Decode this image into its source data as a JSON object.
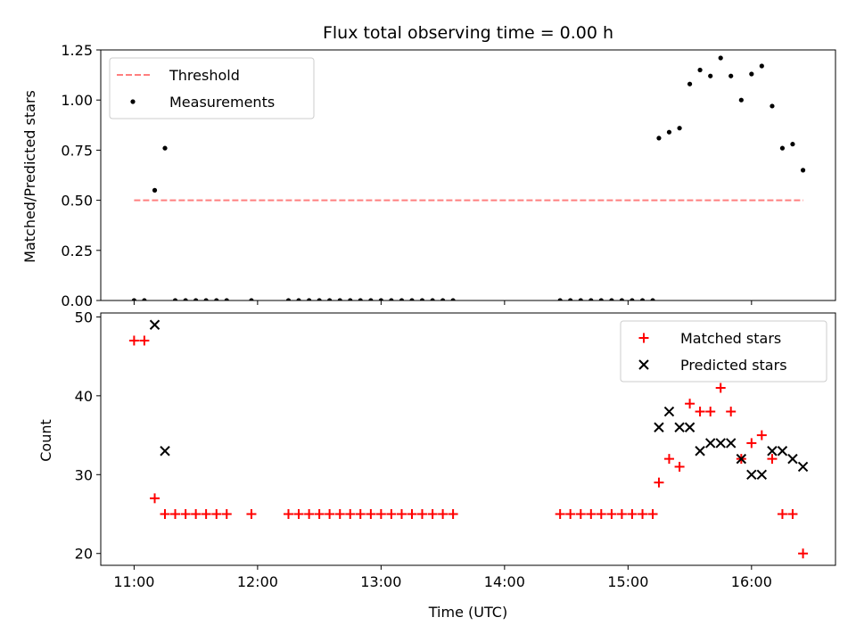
{
  "chart_data": [
    {
      "type": "scatter",
      "title": "Flux total observing time = 0.00 h",
      "xlabel": "",
      "ylabel": "Matched/Predicted stars",
      "xlim": [
        10.73,
        16.68
      ],
      "ylim": [
        0.0,
        1.25
      ],
      "yticks": [
        0.0,
        0.25,
        0.5,
        0.75,
        1.0,
        1.25
      ],
      "ytick_labels": [
        "0.00",
        "0.25",
        "0.50",
        "0.75",
        "1.00",
        "1.25"
      ],
      "xticks": [
        11,
        12,
        13,
        14,
        15,
        16
      ],
      "xtick_labels": [],
      "grid": false,
      "legend": {
        "placement": "upper-left",
        "entries": [
          {
            "name": "Threshold",
            "style": "dashed-line",
            "color": "#ff7f7f"
          },
          {
            "name": "Measurements",
            "style": "dot",
            "color": "#000000"
          }
        ]
      },
      "threshold": {
        "name": "Threshold",
        "x": [
          11.0,
          16.42
        ],
        "y": 0.5,
        "color": "#ff7f7f"
      },
      "series": [
        {
          "name": "Measurements",
          "color": "#000000",
          "x": [
            11.0,
            11.083,
            11.167,
            11.25,
            11.333,
            11.417,
            11.5,
            11.583,
            11.667,
            11.75,
            11.95,
            12.25,
            12.333,
            12.417,
            12.5,
            12.583,
            12.667,
            12.75,
            12.833,
            12.917,
            13.0,
            13.083,
            13.167,
            13.25,
            13.333,
            13.417,
            13.5,
            13.583,
            14.45,
            14.533,
            14.617,
            14.7,
            14.783,
            14.867,
            14.95,
            15.033,
            15.117,
            15.2,
            15.25,
            15.333,
            15.417,
            15.5,
            15.583,
            15.667,
            15.75,
            15.833,
            15.917,
            16.0,
            16.083,
            16.167,
            16.25,
            16.333,
            16.417
          ],
          "y": [
            0.0,
            0.0,
            0.55,
            0.76,
            0.0,
            0.0,
            0.0,
            0.0,
            0.0,
            0.0,
            0.0,
            0.0,
            0.0,
            0.0,
            0.0,
            0.0,
            0.0,
            0.0,
            0.0,
            0.0,
            0.0,
            0.0,
            0.0,
            0.0,
            0.0,
            0.0,
            0.0,
            0.0,
            0.0,
            0.0,
            0.0,
            0.0,
            0.0,
            0.0,
            0.0,
            0.0,
            0.0,
            0.0,
            0.81,
            0.84,
            0.86,
            1.08,
            1.15,
            1.12,
            1.21,
            1.12,
            1.0,
            1.13,
            1.17,
            0.97,
            0.76,
            0.78,
            0.65
          ]
        }
      ]
    },
    {
      "type": "scatter",
      "title": "",
      "xlabel": "Time (UTC)",
      "ylabel": "Count",
      "xlim": [
        10.73,
        16.68
      ],
      "ylim": [
        18.5,
        50.5
      ],
      "yticks": [
        20,
        30,
        40,
        50
      ],
      "ytick_labels": [
        "20",
        "30",
        "40",
        "50"
      ],
      "xticks": [
        11,
        12,
        13,
        14,
        15,
        16
      ],
      "xtick_labels": [
        "11:00",
        "12:00",
        "13:00",
        "14:00",
        "15:00",
        "16:00"
      ],
      "grid": false,
      "legend": {
        "placement": "upper-right",
        "entries": [
          {
            "name": "Matched stars",
            "style": "plus",
            "color": "#ff0000"
          },
          {
            "name": "Predicted stars",
            "style": "x",
            "color": "#000000"
          }
        ]
      },
      "series": [
        {
          "name": "Matched stars",
          "marker": "plus",
          "color": "#ff0000",
          "x": [
            11.0,
            11.083,
            11.167,
            11.25,
            11.333,
            11.417,
            11.5,
            11.583,
            11.667,
            11.75,
            11.95,
            12.25,
            12.333,
            12.417,
            12.5,
            12.583,
            12.667,
            12.75,
            12.833,
            12.917,
            13.0,
            13.083,
            13.167,
            13.25,
            13.333,
            13.417,
            13.5,
            13.583,
            14.45,
            14.533,
            14.617,
            14.7,
            14.783,
            14.867,
            14.95,
            15.033,
            15.117,
            15.2,
            15.25,
            15.333,
            15.417,
            15.5,
            15.583,
            15.667,
            15.75,
            15.833,
            15.917,
            16.0,
            16.083,
            16.167,
            16.25,
            16.333,
            16.417
          ],
          "y": [
            47,
            47,
            27,
            25,
            25,
            25,
            25,
            25,
            25,
            25,
            25,
            25,
            25,
            25,
            25,
            25,
            25,
            25,
            25,
            25,
            25,
            25,
            25,
            25,
            25,
            25,
            25,
            25,
            25,
            25,
            25,
            25,
            25,
            25,
            25,
            25,
            25,
            25,
            29,
            32,
            31,
            39,
            38,
            38,
            41,
            38,
            32,
            34,
            35,
            32,
            25,
            25,
            20
          ]
        },
        {
          "name": "Predicted stars",
          "marker": "x",
          "color": "#000000",
          "x": [
            11.167,
            11.25,
            15.25,
            15.333,
            15.417,
            15.5,
            15.583,
            15.667,
            15.75,
            15.833,
            15.917,
            16.0,
            16.083,
            16.167,
            16.25,
            16.333,
            16.417
          ],
          "y": [
            49,
            33,
            36,
            38,
            36,
            36,
            33,
            34,
            34,
            34,
            32,
            30,
            30,
            33,
            33,
            32,
            31
          ]
        }
      ]
    }
  ]
}
